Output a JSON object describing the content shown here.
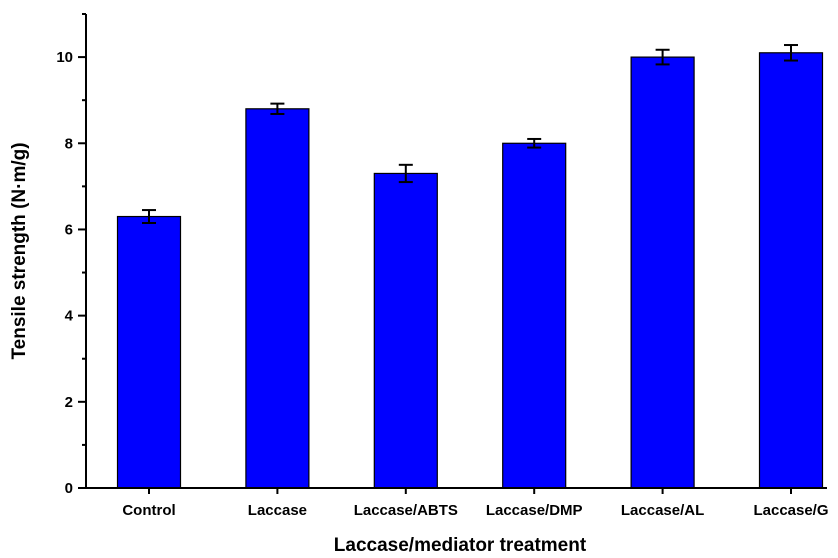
{
  "chart_data": {
    "type": "bar",
    "title": "",
    "xlabel": "Laccase/mediator treatment",
    "ylabel": "Tensile strength (N·m/g)",
    "ylim": [
      0,
      11
    ],
    "yticks": [
      0,
      2,
      4,
      6,
      8,
      10
    ],
    "grid": false,
    "legend": "none",
    "bar_color": "#0000ff",
    "categories": [
      "Control",
      "Laccase",
      "Laccase/ABTS",
      "Laccase/DMP",
      "Laccase/AL",
      "Laccase/G"
    ],
    "values": [
      6.3,
      8.8,
      7.3,
      8.0,
      10.0,
      10.1
    ],
    "errors": [
      0.15,
      0.12,
      0.2,
      0.1,
      0.17,
      0.18
    ]
  }
}
